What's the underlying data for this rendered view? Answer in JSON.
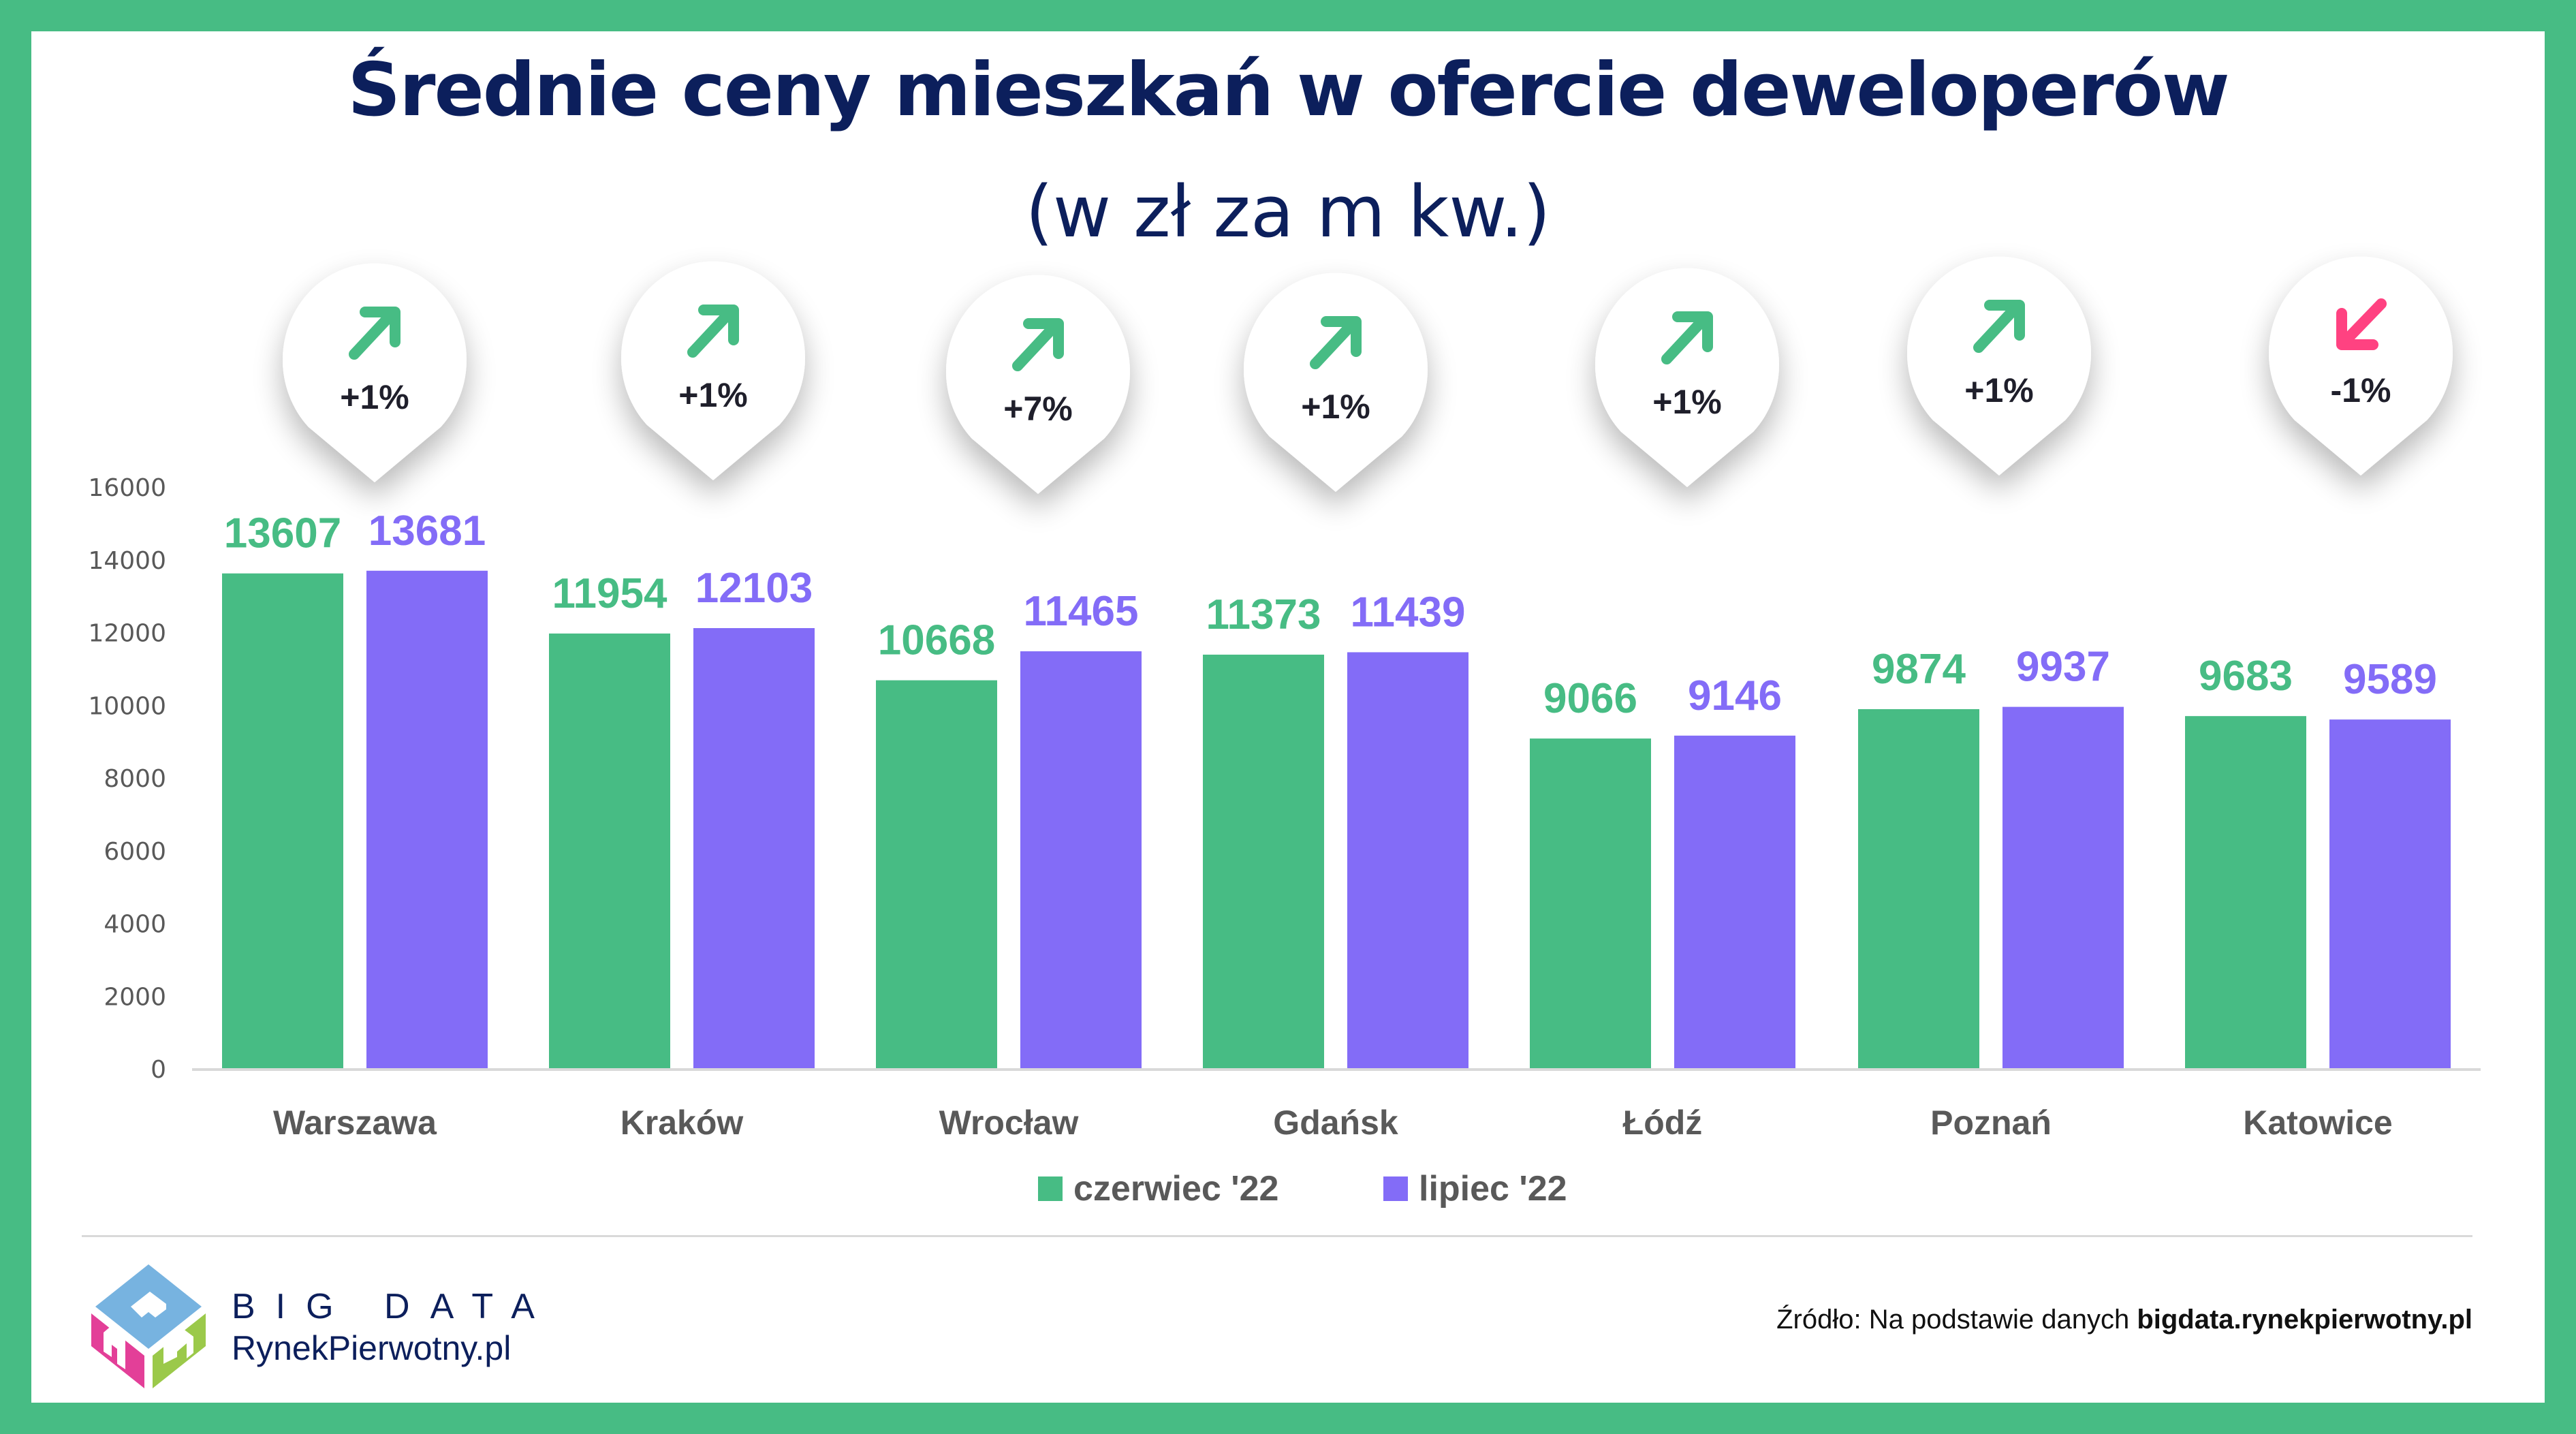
{
  "title": "Średnie ceny mieszkań w ofercie deweloperów",
  "subtitle": "(w zł za m kw.)",
  "colors": {
    "frame": "#47bc84",
    "series1": "#47bc84",
    "series2": "#836cf7",
    "title": "#0c1f5c",
    "up_arrow": "#47bc84",
    "down_arrow": "#ff4281",
    "axis_text": "#595959"
  },
  "chart_data": {
    "type": "bar",
    "title": "Średnie ceny mieszkań w ofercie deweloperów",
    "subtitle": "(w zł za m kw.)",
    "xlabel": "",
    "ylabel": "",
    "ylim": [
      0,
      16000
    ],
    "yticks": [
      0,
      2000,
      4000,
      6000,
      8000,
      10000,
      12000,
      14000,
      16000
    ],
    "grid": false,
    "legend_position": "bottom",
    "categories": [
      "Warszawa",
      "Kraków",
      "Wrocław",
      "Gdańsk",
      "Łódź",
      "Poznań",
      "Katowice"
    ],
    "series": [
      {
        "name": "czerwiec '22",
        "values": [
          13607,
          11954,
          10668,
          11373,
          9066,
          9874,
          9683
        ]
      },
      {
        "name": "lipiec '22",
        "values": [
          13681,
          12103,
          11465,
          11439,
          9146,
          9937,
          9589
        ]
      }
    ],
    "annotations": [
      {
        "category": "Warszawa",
        "text": "+1%",
        "direction": "up"
      },
      {
        "category": "Kraków",
        "text": "+1%",
        "direction": "up"
      },
      {
        "category": "Wrocław",
        "text": "+7%",
        "direction": "up"
      },
      {
        "category": "Gdańsk",
        "text": "+1%",
        "direction": "up"
      },
      {
        "category": "Łódź",
        "text": "+1%",
        "direction": "up"
      },
      {
        "category": "Poznań",
        "text": "+1%",
        "direction": "up"
      },
      {
        "category": "Katowice",
        "text": "-1%",
        "direction": "down"
      }
    ]
  },
  "footer": {
    "brand_big": "BIG DATA",
    "brand_site": "RynekPierwotny.pl",
    "source_prefix": "Źródło: Na podstawie danych ",
    "source_link": "bigdata.rynekpierwotny.pl",
    "logo_icon": "house-cube-logo-icon"
  }
}
